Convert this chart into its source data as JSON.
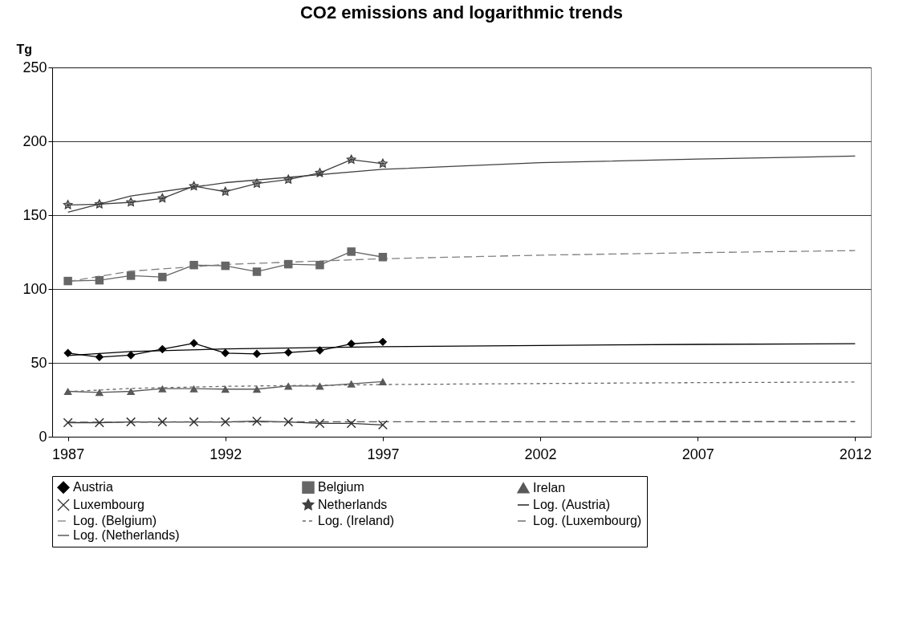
{
  "chart_data": {
    "type": "line",
    "title": "CO2 emissions and logarithmic trends",
    "ylabel": "Tg",
    "xlim": [
      1986.5,
      2012.5
    ],
    "xticks": [
      1987,
      1992,
      1997,
      2002,
      2007,
      2012
    ],
    "ylim": [
      0,
      250
    ],
    "yticks": [
      0,
      50,
      100,
      150,
      200,
      250
    ],
    "grid": "y",
    "legend": "bottom",
    "series": [
      {
        "name": "Austria",
        "color": "#000000",
        "marker": "diamond",
        "line_style": "solid",
        "x": [
          1987,
          1988,
          1989,
          1990,
          1991,
          1992,
          1993,
          1994,
          1995,
          1996,
          1997
        ],
        "values": [
          56.6,
          53.9,
          55.2,
          59.3,
          63.3,
          56.6,
          56.1,
          57.0,
          58.4,
          62.9,
          64.2
        ]
      },
      {
        "name": "Belgium",
        "color": "#666666",
        "marker": "square",
        "line_style": "solid",
        "x": [
          1987,
          1988,
          1989,
          1990,
          1991,
          1992,
          1993,
          1994,
          1995,
          1996,
          1997
        ],
        "values": [
          105.4,
          105.9,
          109.0,
          108.1,
          116.2,
          115.7,
          111.7,
          116.8,
          116.2,
          125.3,
          121.6
        ]
      },
      {
        "name": "Irelan",
        "color": "#595959",
        "marker": "triangle",
        "line_style": "solid",
        "x": [
          1987,
          1988,
          1989,
          1990,
          1991,
          1992,
          1993,
          1994,
          1995,
          1996,
          1997
        ],
        "values": [
          30.7,
          30.0,
          30.7,
          32.5,
          32.5,
          32.2,
          32.2,
          34.3,
          34.3,
          35.8,
          37.3
        ]
      },
      {
        "name": "Luxembourg",
        "color": "#333333",
        "marker": "cross",
        "line_style": "solid",
        "x": [
          1987,
          1988,
          1989,
          1990,
          1991,
          1992,
          1993,
          1994,
          1995,
          1996,
          1997
        ],
        "values": [
          9.5,
          9.5,
          10,
          10,
          10,
          10,
          10.5,
          10,
          9,
          9,
          8
        ]
      },
      {
        "name": "Netherlands",
        "color": "#404040",
        "marker": "star",
        "line_style": "solid",
        "x": [
          1987,
          1988,
          1989,
          1990,
          1991,
          1992,
          1993,
          1994,
          1995,
          1996,
          1997
        ],
        "values": [
          156.9,
          157.4,
          158.7,
          161.4,
          169.6,
          165.9,
          171.4,
          174.1,
          178.6,
          187.6,
          184.9
        ]
      },
      {
        "name": "Log. (Austria)",
        "color": "#000000",
        "marker": "none",
        "line_style": "solid",
        "x": [
          1987,
          1989,
          1992,
          1997,
          2002,
          2007,
          2012
        ],
        "values": [
          55,
          57.7,
          59.4,
          60.9,
          61.8,
          62.5,
          63
        ]
      },
      {
        "name": "Log. (Belgium)",
        "color": "#808080",
        "marker": "none",
        "line_style": "dashed",
        "x": [
          1987,
          1989,
          1992,
          1997,
          2002,
          2007,
          2012
        ],
        "values": [
          105,
          112.1,
          116.6,
          120.5,
          122.9,
          124.6,
          126
        ]
      },
      {
        "name": "Log. (Ireland)",
        "color": "#666666",
        "marker": "none",
        "line_style": "dotted",
        "x": [
          1987,
          1989,
          1992,
          1997,
          2002,
          2007,
          2012
        ],
        "values": [
          30.5,
          32.7,
          34.1,
          35.3,
          36.0,
          36.6,
          37
        ]
      },
      {
        "name": "Log. (Luxembourg)",
        "color": "#595959",
        "marker": "none",
        "line_style": "dashed",
        "x": [
          1987,
          1989,
          1992,
          1997,
          2002,
          2007,
          2012
        ],
        "values": [
          9.8,
          9.9,
          10,
          10.1,
          10.1,
          10.2,
          10.2
        ]
      },
      {
        "name": "Log. (Netherlands)",
        "color": "#404040",
        "marker": "none",
        "line_style": "solid",
        "x": [
          1987,
          1989,
          1992,
          1997,
          2002,
          2007,
          2012
        ],
        "values": [
          152,
          163,
          172,
          181,
          185.5,
          188,
          190
        ]
      }
    ]
  }
}
